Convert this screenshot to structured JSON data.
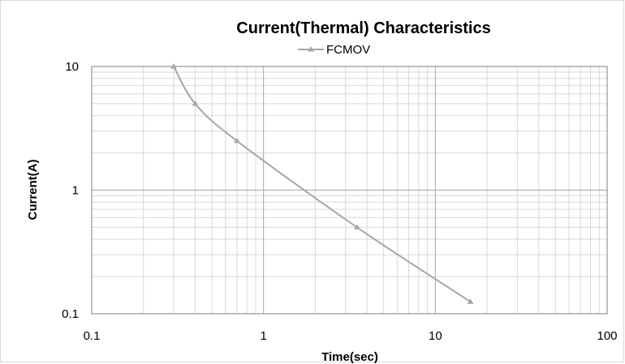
{
  "chart_data": {
    "type": "line",
    "title": "Current(Thermal) Characteristics",
    "xlabel": "Time(sec)",
    "ylabel": "Current(A)",
    "x_scale": "log",
    "y_scale": "log",
    "xlim": [
      0.1,
      100
    ],
    "ylim": [
      0.1,
      10
    ],
    "x_ticks": [
      "0.1",
      "1",
      "10",
      "100"
    ],
    "y_ticks": [
      "0.1",
      "1",
      "10"
    ],
    "grid": true,
    "legend_position": "top",
    "series": [
      {
        "name": "FCMOV",
        "color": "#a6a6a6",
        "marker": "triangle",
        "x": [
          0.3,
          0.4,
          0.7,
          3.5,
          16
        ],
        "y": [
          10,
          5,
          2.5,
          0.5,
          0.125
        ]
      }
    ]
  }
}
